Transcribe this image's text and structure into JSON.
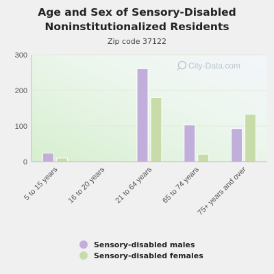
{
  "chart_data": {
    "type": "bar",
    "title_lines": [
      "Age and Sex of Sensory-Disabled",
      "Noninstitutionalized Residents"
    ],
    "subtitle": "Zip code 37122",
    "categories": [
      "5 to 15 years",
      "16 to 20 years",
      "21 to 64 years",
      "65 to 74 years",
      "75+ years and over"
    ],
    "series": [
      {
        "name": "Sensory-disabled males",
        "color": "#c1aedb",
        "values": [
          24,
          0,
          261,
          103,
          93
        ]
      },
      {
        "name": "Sensory-disabled females",
        "color": "#c8dcaa",
        "values": [
          10,
          0,
          180,
          21,
          133
        ]
      }
    ],
    "ylim": [
      0,
      300
    ],
    "yticks": [
      0,
      100,
      200,
      300
    ],
    "grid": true,
    "legend_position": "bottom"
  },
  "watermark": "City-Data.com"
}
